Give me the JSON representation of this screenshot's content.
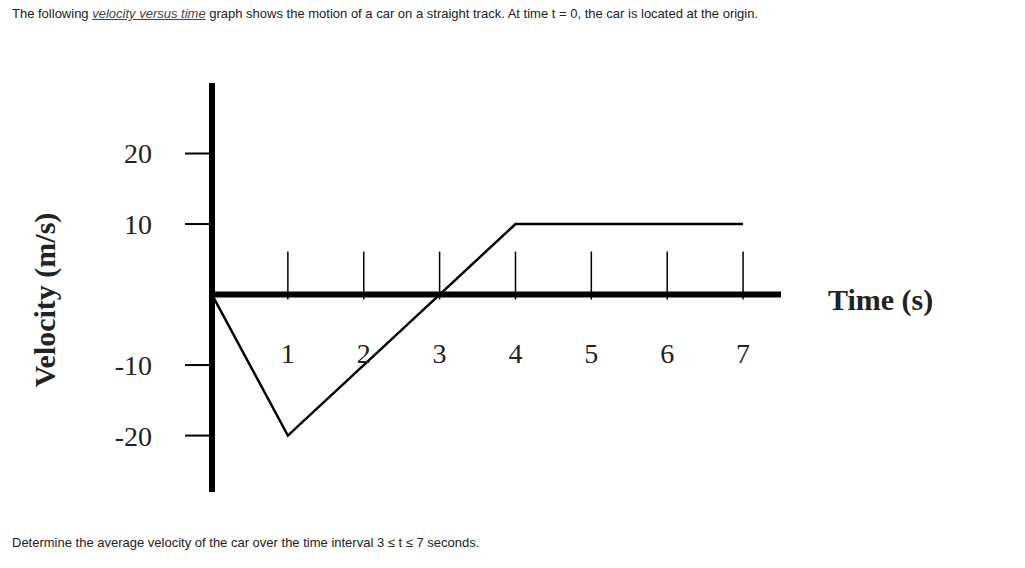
{
  "chart_data": {
    "type": "line",
    "x_label": "Time (s)",
    "y_label": "Velocity (m/s)",
    "x": [
      0,
      1,
      3,
      4,
      7
    ],
    "values": [
      0,
      -20,
      0,
      10,
      10
    ],
    "color": "#000000",
    "xlim": [
      0,
      7.5
    ],
    "ylim": [
      -28,
      30
    ],
    "xticks": [
      1,
      2,
      3,
      4,
      5,
      6,
      7
    ],
    "yticks": [
      -20,
      -10,
      10,
      20
    ]
  },
  "intro": [
    "The following ",
    "velocity versus time",
    " graph shows the motion of a car on a straight track. At time t = 0, the car is located at the origin."
  ],
  "question": "Determine the average velocity of the car over the time interval 3 ≤ t ≤ 7 seconds."
}
